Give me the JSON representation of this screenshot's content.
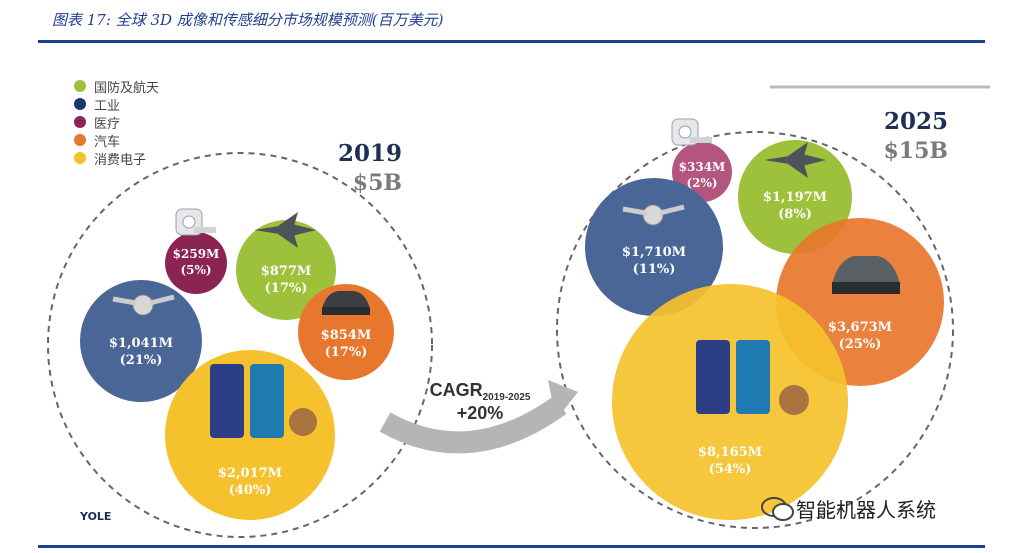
{
  "caption": "图表 17: 全球 3D 成像和传感细分市场规模预测(百万美元)",
  "legend": [
    {
      "label": "国防及航天",
      "color": "#9dc13b"
    },
    {
      "label": "工业",
      "color": "#1d3570"
    },
    {
      "label": "医疗",
      "color": "#8b2353"
    },
    {
      "label": "汽车",
      "color": "#e8772e"
    },
    {
      "label": "消费电子",
      "color": "#f5c12d"
    }
  ],
  "panel_2019": {
    "year": "2019",
    "total": "$5B",
    "bubbles": {
      "medical": {
        "value": "$259M",
        "pct": "(5%)"
      },
      "defense": {
        "value": "$877M",
        "pct": "(17%)"
      },
      "industrial": {
        "value": "$1,041M",
        "pct": "(21%)"
      },
      "automotive": {
        "value": "$854M",
        "pct": "(17%)"
      },
      "consumer": {
        "value": "$2,017M",
        "pct": "(40%)"
      }
    }
  },
  "panel_2025": {
    "year": "2025",
    "total": "$15B",
    "bubbles": {
      "medical": {
        "value": "$334M",
        "pct": "(2%)"
      },
      "defense": {
        "value": "$1,197M",
        "pct": "(8%)"
      },
      "industrial": {
        "value": "$1,710M",
        "pct": "(11%)"
      },
      "automotive": {
        "value": "$3,673M",
        "pct": "(25%)"
      },
      "consumer": {
        "value": "$8,165M",
        "pct": "(54%)"
      }
    }
  },
  "cagr": {
    "label": "CAGR",
    "sub": "2019-2025",
    "rate": "+20%"
  },
  "source_logo": "YOLE",
  "watermark": "智能机器人系统"
}
